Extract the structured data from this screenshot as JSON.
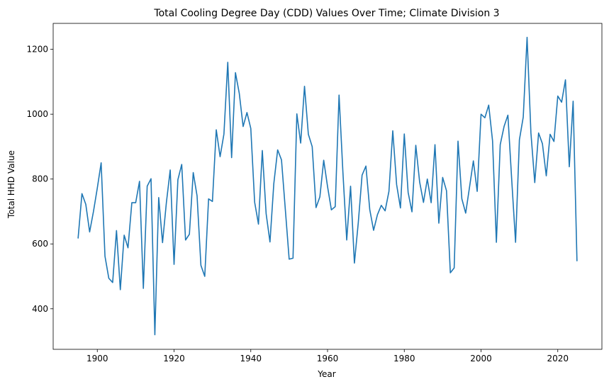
{
  "chart_data": {
    "type": "line",
    "title": "Total Cooling Degree Day (CDD) Values Over Time; Climate Division 3",
    "xlabel": "Year",
    "ylabel": "Total HHD Value",
    "xlim": [
      1888.5,
      2031.5
    ],
    "ylim": [
      275,
      1280
    ],
    "xticks": [
      1900,
      1920,
      1940,
      1960,
      1980,
      2000,
      2020
    ],
    "yticks": [
      400,
      600,
      800,
      1000,
      1200
    ],
    "grid": false,
    "line_color": "#1f77b4",
    "series": [
      {
        "x": [
          1895,
          1896,
          1897,
          1898,
          1899,
          1900,
          1901,
          1902,
          1903,
          1904,
          1905,
          1906,
          1907,
          1908,
          1909,
          1910,
          1911,
          1912,
          1913,
          1914,
          1915,
          1916,
          1917,
          1918,
          1919,
          1920,
          1921,
          1922,
          1923,
          1924,
          1925,
          1926,
          1927,
          1928,
          1929,
          1930,
          1931,
          1932,
          1933,
          1934,
          1935,
          1936,
          1937,
          1938,
          1939,
          1940,
          1941,
          1942,
          1943,
          1944,
          1945,
          1946,
          1947,
          1948,
          1949,
          1950,
          1951,
          1952,
          1953,
          1954,
          1955,
          1956,
          1957,
          1958,
          1959,
          1960,
          1961,
          1962,
          1963,
          1964,
          1965,
          1966,
          1967,
          1968,
          1969,
          1970,
          1971,
          1972,
          1973,
          1974,
          1975,
          1976,
          1977,
          1978,
          1979,
          1980,
          1981,
          1982,
          1983,
          1984,
          1985,
          1986,
          1987,
          1988,
          1989,
          1990,
          1991,
          1992,
          1993,
          1994,
          1995,
          1996,
          1997,
          1998,
          1999,
          2000,
          2001,
          2002,
          2003,
          2004,
          2005,
          2006,
          2007,
          2008,
          2009,
          2010,
          2011,
          2012,
          2013,
          2014,
          2015,
          2016,
          2017,
          2018,
          2019,
          2020,
          2021,
          2022,
          2023,
          2024,
          2025
        ],
        "values": [
          618,
          755,
          722,
          637,
          700,
          772,
          850,
          562,
          494,
          481,
          641,
          459,
          627,
          588,
          727,
          727,
          793,
          463,
          778,
          801,
          320,
          743,
          604,
          727,
          828,
          537,
          798,
          845,
          612,
          630,
          820,
          748,
          534,
          500,
          739,
          731,
          952,
          869,
          939,
          1160,
          866,
          1128,
          1064,
          962,
          1005,
          956,
          729,
          661,
          888,
          693,
          606,
          786,
          890,
          859,
          706,
          553,
          556,
          1001,
          911,
          1086,
          938,
          900,
          712,
          745,
          858,
          777,
          705,
          715,
          1059,
          822,
          612,
          778,
          541,
          664,
          812,
          840,
          706,
          642,
          690,
          719,
          702,
          762,
          949,
          783,
          711,
          939,
          759,
          699,
          904,
          791,
          728,
          800,
          727,
          906,
          664,
          805,
          764,
          511,
          526,
          917,
          739,
          695,
          775,
          856,
          762,
          1000,
          989,
          1028,
          918,
          605,
          906,
          962,
          997,
          797,
          605,
          921,
          991,
          1237,
          942,
          789,
          942,
          909,
          810,
          938,
          916,
          1056,
          1037,
          1106,
          838,
          1040,
          548
        ]
      }
    ]
  }
}
